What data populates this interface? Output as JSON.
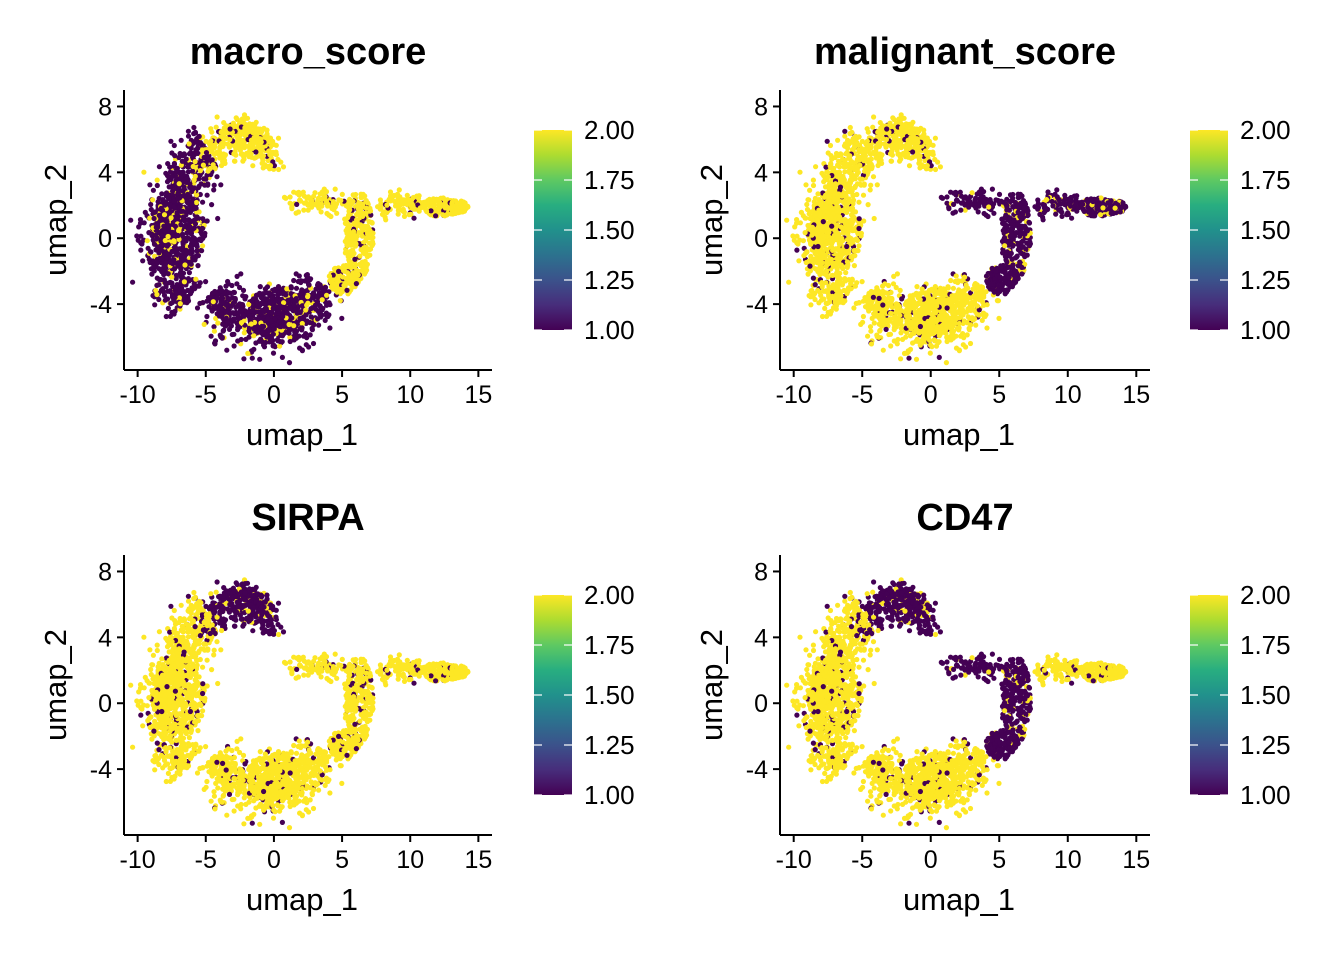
{
  "colors": {
    "low": "#440154",
    "high": "#fde725",
    "viridis": [
      "#440154",
      "#472d7b",
      "#3b528b",
      "#2c728e",
      "#21918c",
      "#28ae80",
      "#5ec962",
      "#addc30",
      "#fde725"
    ]
  },
  "chart_data": [
    {
      "type": "scatter",
      "title": "macro_score",
      "xlabel": "umap_1",
      "ylabel": "umap_2",
      "xlim": [
        -11,
        16
      ],
      "ylim": [
        -8,
        9
      ],
      "xticks": [
        "-10",
        "-5",
        "0",
        "5",
        "10",
        "15"
      ],
      "yticks": [
        "-4",
        "0",
        "4",
        "8"
      ],
      "grid": false,
      "legend": "right",
      "colorbar": {
        "min": 1.0,
        "max": 2.0,
        "ticks": [
          "1.00",
          "1.25",
          "1.50",
          "1.75",
          "2.00"
        ]
      },
      "high_regions": [
        "top-loop",
        "right-arm",
        "tail"
      ]
    },
    {
      "type": "scatter",
      "title": "malignant_score",
      "xlabel": "umap_1",
      "ylabel": "umap_2",
      "xlim": [
        -11,
        16
      ],
      "ylim": [
        -8,
        9
      ],
      "xticks": [
        "-10",
        "-5",
        "0",
        "5",
        "10",
        "15"
      ],
      "yticks": [
        "-4",
        "0",
        "4",
        "8"
      ],
      "grid": false,
      "legend": "right",
      "colorbar": {
        "min": 1.0,
        "max": 2.0,
        "ticks": [
          "1.00",
          "1.25",
          "1.50",
          "1.75",
          "2.00"
        ]
      },
      "high_regions": [
        "top-loop",
        "left-cluster",
        "bottom"
      ]
    },
    {
      "type": "scatter",
      "title": "SIRPA",
      "xlabel": "umap_1",
      "ylabel": "umap_2",
      "xlim": [
        -11,
        16
      ],
      "ylim": [
        -8,
        9
      ],
      "xticks": [
        "-10",
        "-5",
        "0",
        "5",
        "10",
        "15"
      ],
      "yticks": [
        "-4",
        "0",
        "4",
        "8"
      ],
      "grid": false,
      "legend": "right",
      "colorbar": {
        "min": 1.0,
        "max": 2.0,
        "ticks": [
          "1.00",
          "1.25",
          "1.50",
          "1.75",
          "2.00"
        ]
      },
      "high_regions": [
        "left-cluster",
        "bottom",
        "right-arm",
        "tail"
      ]
    },
    {
      "type": "scatter",
      "title": "CD47",
      "xlabel": "umap_1",
      "ylabel": "umap_2",
      "xlim": [
        -11,
        16
      ],
      "ylim": [
        -8,
        9
      ],
      "xticks": [
        "-10",
        "-5",
        "0",
        "5",
        "10",
        "15"
      ],
      "yticks": [
        "-4",
        "0",
        "4",
        "8"
      ],
      "grid": false,
      "legend": "right",
      "colorbar": {
        "min": 1.0,
        "max": 2.0,
        "ticks": [
          "1.00",
          "1.25",
          "1.50",
          "1.75",
          "2.00"
        ]
      },
      "high_regions": [
        "left-cluster",
        "bottom",
        "tail"
      ]
    }
  ]
}
